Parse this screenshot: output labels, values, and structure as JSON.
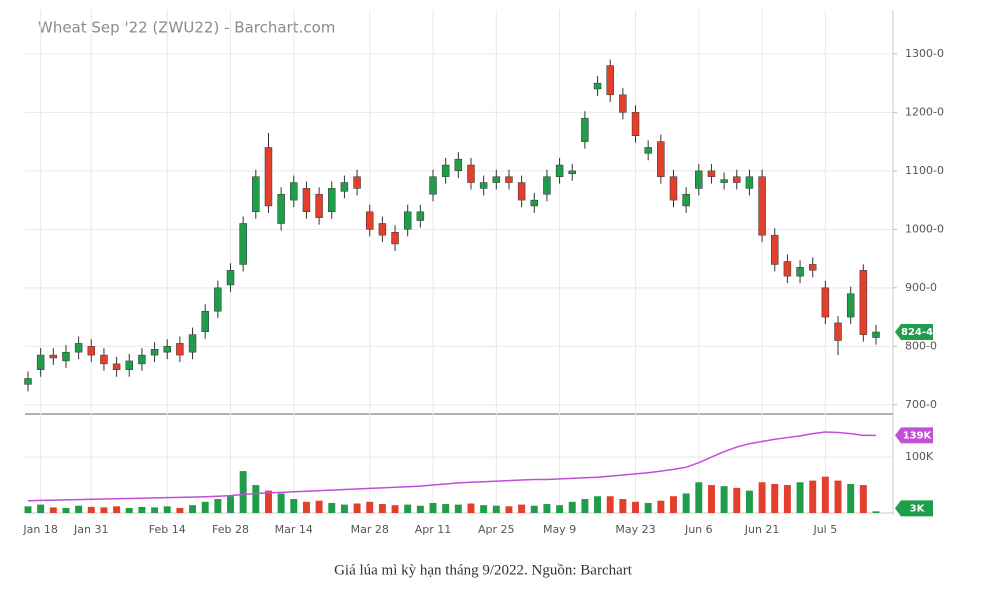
{
  "chart_data": {
    "type": "candlestick",
    "title": "Wheat Sep '22 (ZWU22) - Barchart.com",
    "caption": "Giá lúa mì kỳ hạn tháng 9/2022. Nguồn: Barchart",
    "categories": [
      null,
      "Jan 18",
      null,
      null,
      null,
      "Jan 31",
      null,
      null,
      null,
      null,
      null,
      "Feb 14",
      null,
      null,
      null,
      null,
      "Feb 28",
      null,
      null,
      null,
      null,
      "Mar 14",
      null,
      null,
      null,
      null,
      null,
      "Mar 28",
      null,
      null,
      null,
      null,
      "Apr 11",
      null,
      null,
      null,
      null,
      "Apr 25",
      null,
      null,
      null,
      null,
      "May 9",
      null,
      null,
      null,
      null,
      null,
      "May 23",
      null,
      null,
      null,
      null,
      "Jun 6",
      null,
      null,
      null,
      null,
      "Jun 21",
      null,
      null,
      null,
      null,
      "Jul 5",
      null,
      null,
      null,
      null
    ],
    "open": [
      735,
      760,
      785,
      775,
      790,
      800,
      785,
      770,
      760,
      770,
      785,
      790,
      805,
      790,
      825,
      860,
      905,
      940,
      1030,
      1140,
      1010,
      1050,
      1070,
      1060,
      1030,
      1065,
      1090,
      1030,
      1010,
      995,
      1000,
      1015,
      1060,
      1090,
      1100,
      1110,
      1070,
      1080,
      1090,
      1080,
      1040,
      1060,
      1090,
      1095,
      1150,
      1240,
      1280,
      1230,
      1200,
      1130,
      1150,
      1090,
      1040,
      1070,
      1100,
      1080,
      1090,
      1070,
      1090,
      990,
      945,
      920,
      940,
      900,
      840,
      850,
      930,
      815
    ],
    "high": [
      757,
      797,
      797,
      802,
      817,
      812,
      797,
      782,
      787,
      797,
      807,
      812,
      817,
      832,
      872,
      912,
      942,
      1022,
      1102,
      1165,
      1072,
      1092,
      1082,
      1072,
      1082,
      1092,
      1102,
      1042,
      1022,
      1007,
      1042,
      1042,
      1102,
      1122,
      1132,
      1122,
      1092,
      1102,
      1102,
      1092,
      1062,
      1102,
      1122,
      1112,
      1202,
      1262,
      1290,
      1242,
      1212,
      1152,
      1162,
      1102,
      1072,
      1112,
      1112,
      1097,
      1102,
      1102,
      1102,
      1002,
      957,
      947,
      952,
      912,
      852,
      902,
      940,
      836.5
    ],
    "low": [
      723,
      748,
      768,
      763,
      778,
      773,
      758,
      748,
      748,
      758,
      773,
      778,
      773,
      778,
      813,
      848,
      893,
      928,
      1018,
      1028,
      998,
      1038,
      1018,
      1008,
      1018,
      1053,
      1058,
      988,
      978,
      963,
      988,
      1003,
      1048,
      1078,
      1088,
      1068,
      1058,
      1068,
      1068,
      1038,
      1028,
      1048,
      1078,
      1083,
      1138,
      1228,
      1218,
      1188,
      1148,
      1118,
      1078,
      1038,
      1028,
      1058,
      1078,
      1068,
      1068,
      1058,
      978,
      928,
      908,
      908,
      918,
      838,
      785,
      838,
      808,
      803
    ],
    "close": [
      745,
      785,
      780,
      790,
      805,
      785,
      770,
      760,
      775,
      785,
      795,
      800,
      785,
      820,
      860,
      900,
      930,
      1010,
      1090,
      1040,
      1060,
      1080,
      1030,
      1020,
      1070,
      1080,
      1070,
      1000,
      990,
      975,
      1030,
      1030,
      1090,
      1110,
      1120,
      1080,
      1080,
      1090,
      1080,
      1050,
      1050,
      1090,
      1110,
      1100,
      1190,
      1250,
      1230,
      1200,
      1160,
      1140,
      1090,
      1050,
      1060,
      1100,
      1090,
      1085,
      1080,
      1090,
      990,
      940,
      920,
      935,
      930,
      850,
      810,
      890,
      820,
      824.5
    ],
    "up_color": "#1f9d4b",
    "down_color": "#e2402c",
    "ylim": [
      686,
      1375
    ],
    "yticks": [
      {
        "value": 700,
        "label": "700-0"
      },
      {
        "value": 800,
        "label": "800-0"
      },
      {
        "value": 900,
        "label": "900-0"
      },
      {
        "value": 1000,
        "label": "1000-0"
      },
      {
        "value": 1100,
        "label": "1100-0"
      },
      {
        "value": 1200,
        "label": "1200-0"
      },
      {
        "value": 1300,
        "label": "1300-0"
      }
    ],
    "last_price": {
      "value": 824.5,
      "label": "824-4"
    },
    "volume": [
      12000,
      15000,
      10000,
      9000,
      13000,
      11000,
      10000,
      12000,
      9000,
      11000,
      10000,
      12000,
      9000,
      14000,
      20000,
      25000,
      30000,
      75000,
      50000,
      40000,
      35000,
      25000,
      20000,
      22000,
      18000,
      15000,
      17000,
      20000,
      16000,
      14000,
      15000,
      13000,
      18000,
      16000,
      15000,
      17000,
      14000,
      13000,
      12000,
      15000,
      13000,
      16000,
      14000,
      20000,
      25000,
      30000,
      30000,
      25000,
      20000,
      18000,
      22000,
      30000,
      35000,
      55000,
      50000,
      48000,
      45000,
      40000,
      55000,
      52000,
      50000,
      55000,
      58000,
      65000,
      58000,
      52000,
      50000,
      3000
    ],
    "volume_label": "3K",
    "volume_ma": [
      22000,
      22500,
      23000,
      23500,
      24000,
      24500,
      25000,
      25500,
      26000,
      26500,
      27000,
      27500,
      28000,
      28500,
      29000,
      30000,
      31000,
      33000,
      35000,
      36000,
      37000,
      38000,
      39000,
      40000,
      41000,
      42000,
      43000,
      44000,
      45000,
      46000,
      47000,
      48000,
      50000,
      52000,
      54000,
      55000,
      56000,
      57000,
      58000,
      59000,
      60000,
      60000,
      61000,
      62000,
      63000,
      64000,
      66000,
      68000,
      70000,
      72000,
      75000,
      78000,
      82000,
      90000,
      100000,
      110000,
      118000,
      124000,
      128000,
      132000,
      135000,
      138000,
      142000,
      145000,
      144000,
      142000,
      139000,
      139000
    ],
    "volume_ma_label": "139K",
    "volume_ma_color": "#c24fd8",
    "vlim": [
      0,
      170000
    ],
    "vticks": [
      {
        "value": 100000,
        "label": "100K"
      }
    ],
    "grid": true
  }
}
